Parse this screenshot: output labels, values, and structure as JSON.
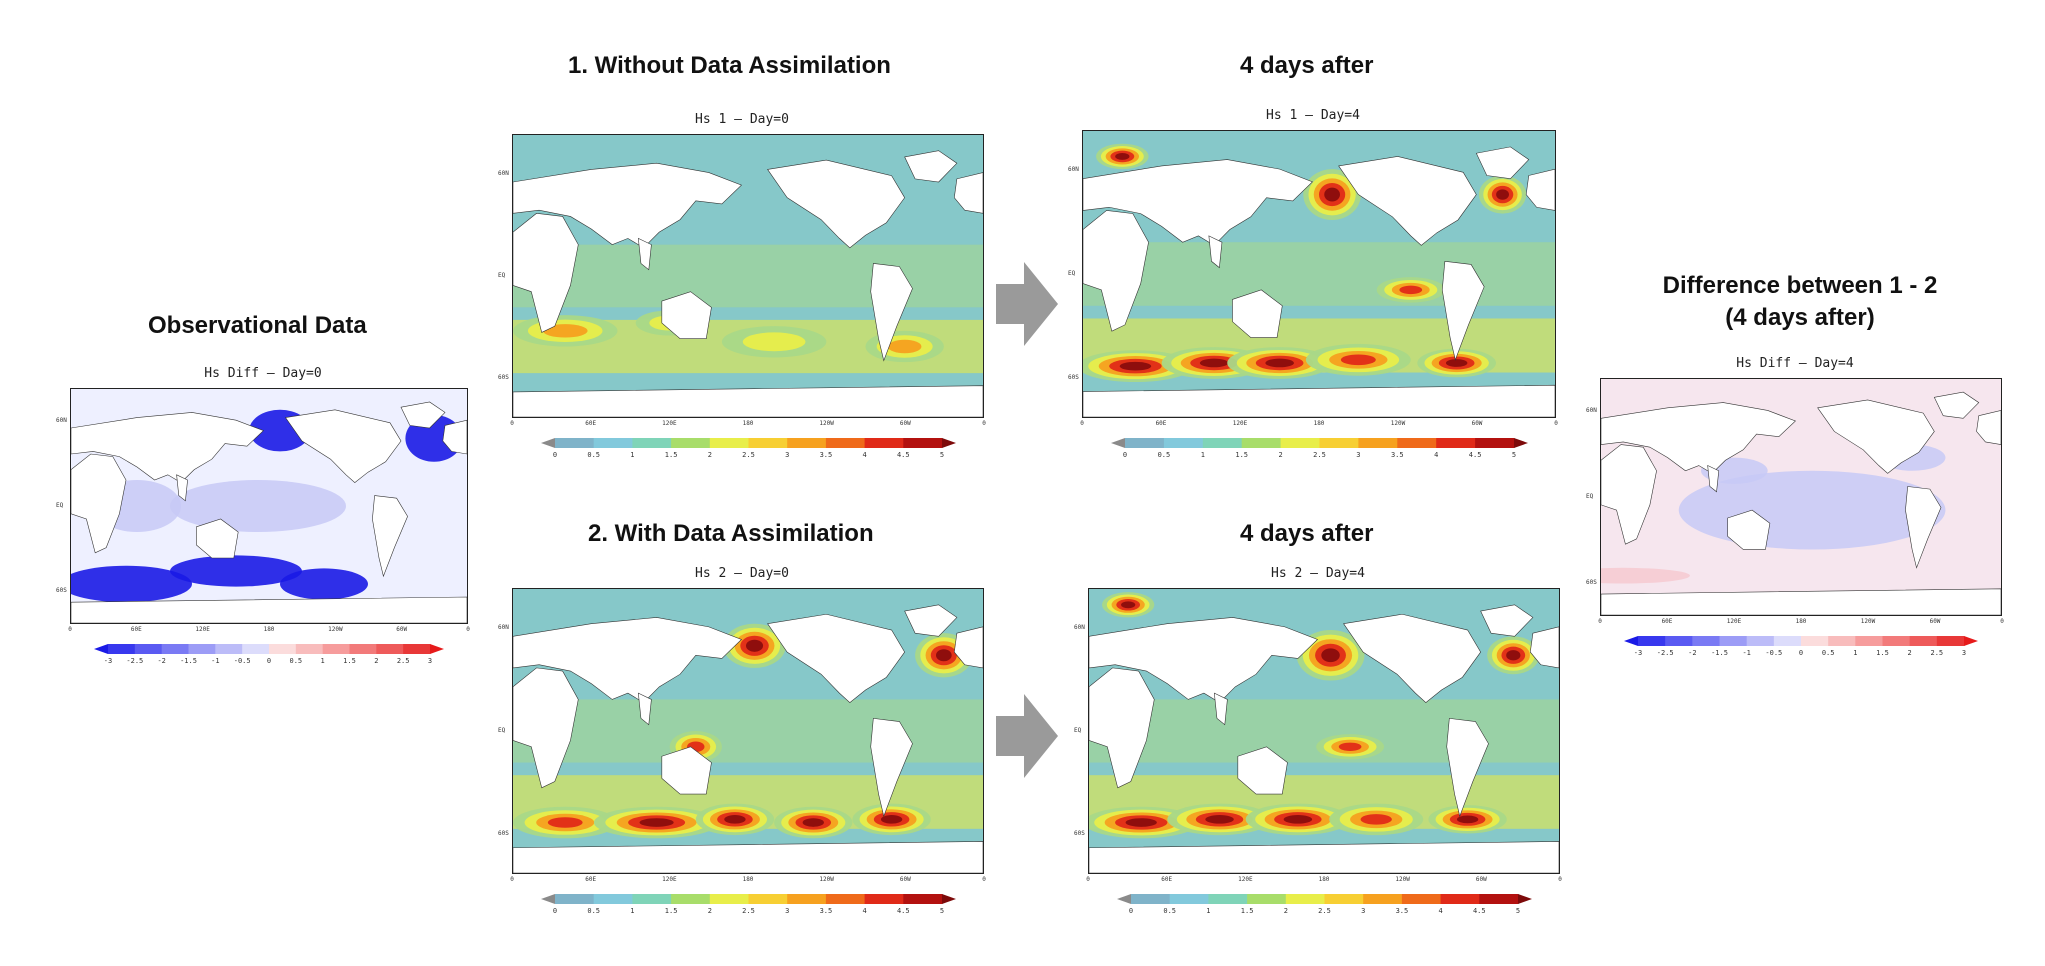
{
  "headings": {
    "observational": "Observational Data",
    "without_da": "1. Without Data Assimilation",
    "after_top": "4 days after",
    "with_da": "2. With Data Assimilation",
    "after_bottom": "4 days after",
    "difference_line1": "Difference between 1 - 2",
    "difference_line2": "(4 days after)"
  },
  "panels": {
    "obs": {
      "title": "Hs Diff  – Day=0"
    },
    "hs1_day0": {
      "title": "Hs 1  – Day=0"
    },
    "hs1_day4": {
      "title": "Hs 1  – Day=4"
    },
    "hs2_day0": {
      "title": "Hs 2  – Day=0"
    },
    "hs2_day4": {
      "title": "Hs 2  – Day=4"
    },
    "diff_day4": {
      "title": "Hs Diff  – Day=4"
    }
  },
  "lat_labels": [
    "60N",
    "EQ",
    "60S"
  ],
  "lon_labels": [
    "0",
    "60E",
    "120E",
    "180",
    "120W",
    "60W",
    "0"
  ],
  "colorbars": {
    "hs_labels": [
      "0",
      "0.5",
      "1",
      "1.5",
      "2",
      "2.5",
      "3",
      "3.5",
      "4",
      "4.5",
      "5"
    ],
    "hs_colors": [
      "#8a8a8a",
      "#7fb3c9",
      "#82c9dc",
      "#7fd4b8",
      "#a8dd6a",
      "#e8ee4a",
      "#f7cf33",
      "#f6a11f",
      "#ef6a1a",
      "#e02a18",
      "#b3110f",
      "#7d0a0a"
    ],
    "diff_labels": [
      "-3",
      "-2.5",
      "-2",
      "-1.5",
      "-1",
      "-0.5",
      "0",
      "0.5",
      "1",
      "1.5",
      "2",
      "2.5",
      "3"
    ],
    "diff_colors": [
      "#1a1ae6",
      "#3838ee",
      "#5a5af2",
      "#7a7af4",
      "#9c9cf6",
      "#bcbcf8",
      "#dcdcfb",
      "#fbdcdc",
      "#f8bcbc",
      "#f69c9c",
      "#f27a7a",
      "#ee5a5a",
      "#e83838",
      "#e61a1a"
    ]
  }
}
